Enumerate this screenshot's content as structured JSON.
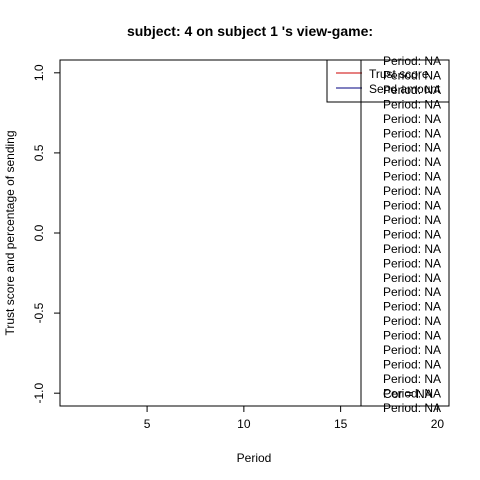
{
  "chart_data": {
    "type": "line",
    "title": "subject:  4  on subject  1 's view-game:",
    "xlabel": "Period",
    "ylabel": "Trust score and percentage of sending",
    "xlim": [
      0.5,
      20.6
    ],
    "ylim": [
      -1.08,
      1.08
    ],
    "x_ticks": [
      5,
      10,
      15,
      20
    ],
    "y_ticks": [
      -1.0,
      -0.5,
      0.0,
      0.5,
      1.0
    ],
    "y_tick_labels": [
      "-1.0",
      "-0.5",
      "0.0",
      "0.5",
      "1.0"
    ],
    "grid": false,
    "legend_position": "top-right",
    "series": [
      {
        "name": "Trust score",
        "color": "#cc0000",
        "values": []
      },
      {
        "name": "Send amount",
        "color": "#000080",
        "values": []
      }
    ],
    "annotations": {
      "period_entries": [
        "Period:  NA",
        "Period:  NA",
        "Period:  NA",
        "Period:  NA",
        "Period:  NA",
        "Period:  NA",
        "Period:  NA",
        "Period:  NA",
        "Period:  NA",
        "Period:  NA",
        "Period:  NA",
        "Period:  NA",
        "Period:  NA",
        "Period:  NA",
        "Period:  NA",
        "Period:  NA",
        "Period:  NA",
        "Period:  NA",
        "Period:  NA",
        "Period:  NA",
        "Period:  NA",
        "Period:  NA",
        "Period:  NA",
        "Period:  NA",
        "Period:  NA"
      ],
      "correlation": "Cor =  NA"
    }
  }
}
